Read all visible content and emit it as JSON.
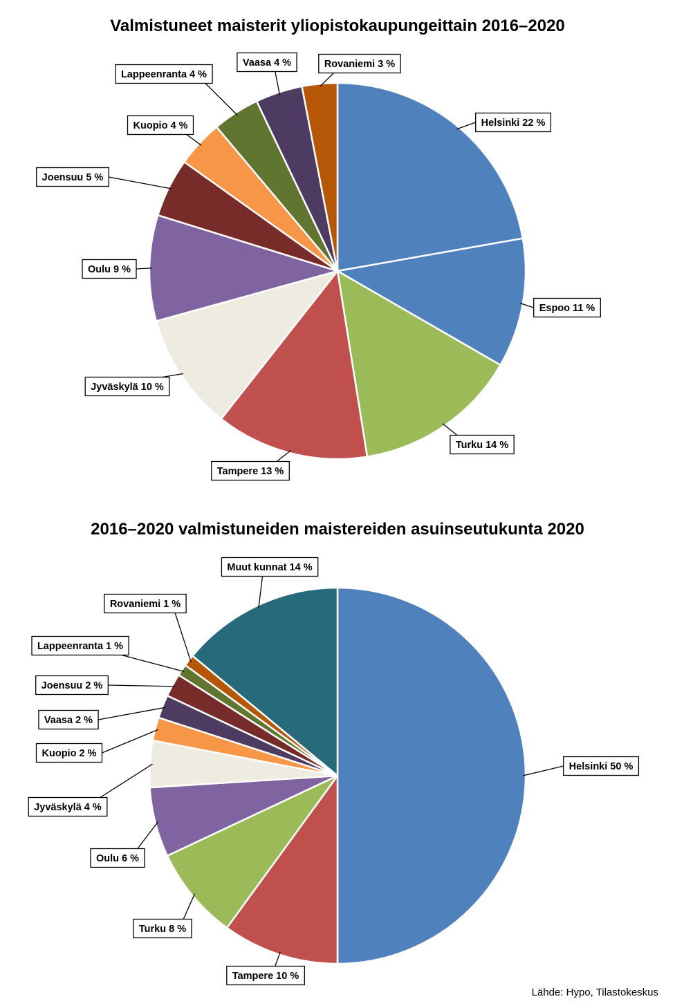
{
  "source": "Lähde: Hypo, Tilastokeskus",
  "chart_data": [
    {
      "type": "pie",
      "title": "Valmistuneet maisterit yliopistokaupungeittain 2016–2020",
      "slices": [
        {
          "name": "Helsinki",
          "value": 22,
          "label": "Helsinki 22 %",
          "color": "#4F81BD"
        },
        {
          "name": "Espoo",
          "value": 11,
          "label": "Espoo 11 %",
          "color": "#4F81BD"
        },
        {
          "name": "Turku",
          "value": 14,
          "label": "Turku 14 %",
          "color": "#9BBB59"
        },
        {
          "name": "Tampere",
          "value": 13,
          "label": "Tampere 13 %",
          "color": "#C0504D"
        },
        {
          "name": "Jyväskylä",
          "value": 10,
          "label": "Jyväskylä 10 %",
          "color": "#EEECE1"
        },
        {
          "name": "Oulu",
          "value": 9,
          "label": "Oulu 9 %",
          "color": "#8064A2"
        },
        {
          "name": "Joensuu",
          "value": 5,
          "label": "Joensuu 5 %",
          "color": "#772C2A"
        },
        {
          "name": "Kuopio",
          "value": 4,
          "label": "Kuopio 4 %",
          "color": "#F79646"
        },
        {
          "name": "Lappeenranta",
          "value": 4,
          "label": "Lappeenranta 4 %",
          "color": "#5F7530"
        },
        {
          "name": "Vaasa",
          "value": 4,
          "label": "Vaasa 4 %",
          "color": "#4D3B62"
        },
        {
          "name": "Rovaniemi",
          "value": 3,
          "label": "Rovaniemi 3 %",
          "color": "#B65708"
        }
      ]
    },
    {
      "type": "pie",
      "title": "2016–2020 valmistuneiden maistereiden asuinseutukunta 2020",
      "slices": [
        {
          "name": "Helsinki",
          "value": 50,
          "label": "Helsinki 50 %",
          "color": "#4F81BD"
        },
        {
          "name": "Tampere",
          "value": 10,
          "label": "Tampere 10 %",
          "color": "#C0504D"
        },
        {
          "name": "Turku",
          "value": 8,
          "label": "Turku 8 %",
          "color": "#9BBB59"
        },
        {
          "name": "Oulu",
          "value": 6,
          "label": "Oulu 6 %",
          "color": "#8064A2"
        },
        {
          "name": "Jyväskylä",
          "value": 4,
          "label": "Jyväskylä 4 %",
          "color": "#EEECE1"
        },
        {
          "name": "Kuopio",
          "value": 2,
          "label": "Kuopio 2 %",
          "color": "#F79646"
        },
        {
          "name": "Vaasa",
          "value": 2,
          "label": "Vaasa 2 %",
          "color": "#4D3B62"
        },
        {
          "name": "Joensuu",
          "value": 2,
          "label": "Joensuu 2 %",
          "color": "#772C2A"
        },
        {
          "name": "Lappeenranta",
          "value": 1,
          "label": "Lappeenranta 1 %",
          "color": "#5F7530"
        },
        {
          "name": "Rovaniemi",
          "value": 1,
          "label": "Rovaniemi 1 %",
          "color": "#B65708"
        },
        {
          "name": "Muut kunnat",
          "value": 14,
          "label": "Muut kunnat 14 %",
          "color": "#276A7C"
        }
      ]
    }
  ]
}
